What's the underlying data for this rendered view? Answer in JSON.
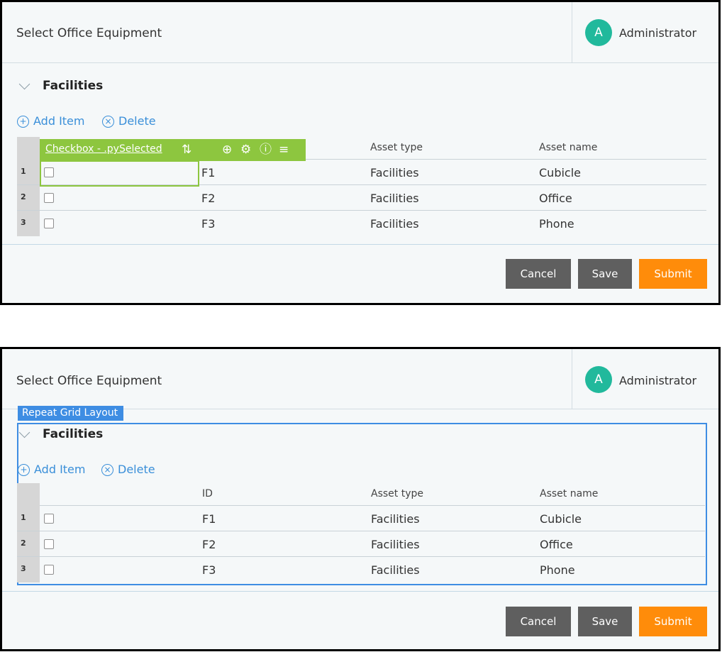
{
  "panels": [
    {
      "title": "Select Office Equipment",
      "avatar_letter": "A",
      "user_name": "Administrator",
      "section_title": "Facilities",
      "add_item": "Add Item",
      "delete": "Delete",
      "add_icon": "plus-circle-icon",
      "delete_icon": "x-circle-icon",
      "green_toolbar_label": "Checkbox - .pySelected",
      "columns": [
        "",
        "Asset type",
        "Asset name"
      ],
      "rows": [
        {
          "num": "1",
          "id": "F1",
          "type": "Facilities",
          "name": "Cubicle"
        },
        {
          "num": "2",
          "id": "F2",
          "type": "Facilities",
          "name": "Office"
        },
        {
          "num": "3",
          "id": "F3",
          "type": "Facilities",
          "name": "Phone"
        }
      ],
      "buttons": {
        "cancel": "Cancel",
        "save": "Save",
        "submit": "Submit"
      }
    },
    {
      "title": "Select Office Equipment",
      "avatar_letter": "A",
      "user_name": "Administrator",
      "section_title": "Facilities",
      "add_item": "Add Item",
      "delete": "Delete",
      "layout_tag": "Repeat Grid Layout",
      "columns": [
        "ID",
        "Asset type",
        "Asset name"
      ],
      "rows": [
        {
          "num": "1",
          "id": "F1",
          "type": "Facilities",
          "name": "Cubicle"
        },
        {
          "num": "2",
          "id": "F2",
          "type": "Facilities",
          "name": "Office"
        },
        {
          "num": "3",
          "id": "F3",
          "type": "Facilities",
          "name": "Phone"
        }
      ],
      "buttons": {
        "cancel": "Cancel",
        "save": "Save",
        "submit": "Submit"
      }
    }
  ],
  "colors": {
    "accent_green": "#8dc63f",
    "accent_blue": "#3e8de3",
    "submit": "#ff8c0a",
    "button_dark": "#5f5f5f",
    "avatar": "#21b99c",
    "link": "#3a8fd9"
  }
}
